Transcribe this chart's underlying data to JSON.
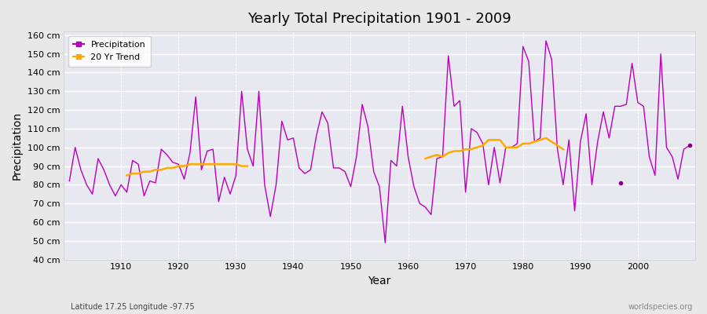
{
  "title": "Yearly Total Precipitation 1901 - 2009",
  "xlabel": "Year",
  "ylabel": "Precipitation",
  "subtitle": "Latitude 17.25 Longitude -97.75",
  "watermark": "worldspecies.org",
  "ylim": [
    40,
    162
  ],
  "yticks": [
    40,
    50,
    60,
    70,
    80,
    90,
    100,
    110,
    120,
    130,
    140,
    150,
    160
  ],
  "ytick_labels": [
    "40 cm",
    "50 cm",
    "60 cm",
    "70 cm",
    "80 cm",
    "90 cm",
    "100 cm",
    "110 cm",
    "120 cm",
    "130 cm",
    "140 cm",
    "150 cm",
    "160 cm"
  ],
  "xlim": [
    1900,
    2010
  ],
  "line_color": "#bb00bb",
  "trend_color": "#ffaa00",
  "bg_color": "#e8e8e8",
  "plot_bg_color": "#e8e8f0",
  "years": [
    1901,
    1902,
    1903,
    1904,
    1905,
    1906,
    1907,
    1908,
    1909,
    1910,
    1911,
    1912,
    1913,
    1914,
    1915,
    1916,
    1917,
    1918,
    1919,
    1920,
    1921,
    1922,
    1923,
    1924,
    1925,
    1926,
    1927,
    1928,
    1929,
    1930,
    1931,
    1932,
    1933,
    1934,
    1935,
    1936,
    1937,
    1938,
    1939,
    1940,
    1941,
    1942,
    1943,
    1944,
    1945,
    1946,
    1947,
    1948,
    1949,
    1950,
    1951,
    1952,
    1953,
    1954,
    1955,
    1956,
    1957,
    1958,
    1959,
    1960,
    1961,
    1962,
    1963,
    1964,
    1965,
    1966,
    1967,
    1968,
    1969,
    1970,
    1971,
    1972,
    1973,
    1974,
    1975,
    1976,
    1977,
    1978,
    1979,
    1980,
    1981,
    1982,
    1983,
    1984,
    1985,
    1986,
    1987,
    1988,
    1989,
    1990,
    1991,
    1992,
    1993,
    1994,
    1995,
    1996,
    1997,
    1998,
    1999,
    2000,
    2001,
    2002,
    2003,
    2004,
    2005,
    2006,
    2007,
    2008,
    2009
  ],
  "precip": [
    82,
    100,
    88,
    80,
    75,
    94,
    88,
    80,
    74,
    80,
    76,
    93,
    91,
    74,
    82,
    81,
    99,
    96,
    92,
    91,
    83,
    97,
    127,
    88,
    98,
    99,
    71,
    84,
    75,
    85,
    130,
    99,
    90,
    130,
    80,
    63,
    80,
    114,
    104,
    105,
    89,
    86,
    88,
    106,
    119,
    113,
    89,
    89,
    87,
    79,
    95,
    123,
    111,
    87,
    79,
    49,
    93,
    90,
    122,
    95,
    79,
    70,
    68,
    64,
    94,
    95,
    149,
    122,
    125,
    76,
    110,
    108,
    102,
    80,
    100,
    81,
    100,
    100,
    102,
    154,
    146,
    103,
    105,
    157,
    147,
    99,
    80,
    104,
    66,
    103,
    118,
    80,
    103,
    119,
    105,
    122,
    122,
    123,
    145,
    124,
    122,
    95,
    85,
    150,
    100,
    95,
    83,
    99,
    101
  ],
  "trend_years": [
    1963,
    1964,
    1965,
    1966,
    1967,
    1968,
    1969,
    1970,
    1971,
    1972,
    1973,
    1974,
    1975,
    1976,
    1977,
    1978,
    1979,
    1980,
    1981,
    1982,
    1983,
    1984,
    1985,
    1986,
    1987
  ],
  "trend_vals": [
    94,
    95,
    96,
    95,
    97,
    98,
    98,
    99,
    99,
    100,
    101,
    104,
    104,
    104,
    100,
    100,
    100,
    102,
    102,
    103,
    104,
    105,
    103,
    101,
    99
  ],
  "trend_years2": [
    1911,
    1912,
    1913,
    1914,
    1915,
    1916,
    1917,
    1918,
    1919,
    1920,
    1921,
    1922,
    1923,
    1924,
    1925,
    1926,
    1927,
    1928,
    1929,
    1930,
    1931,
    1932
  ],
  "trend_vals2": [
    85,
    86,
    86,
    87,
    87,
    88,
    88,
    89,
    89,
    90,
    90,
    91,
    91,
    91,
    91,
    91,
    91,
    91,
    91,
    91,
    90,
    90
  ],
  "isolated_points": [
    [
      1997,
      81
    ],
    [
      2009,
      101
    ]
  ],
  "isolated_colors": [
    "#880088",
    "#880088"
  ]
}
